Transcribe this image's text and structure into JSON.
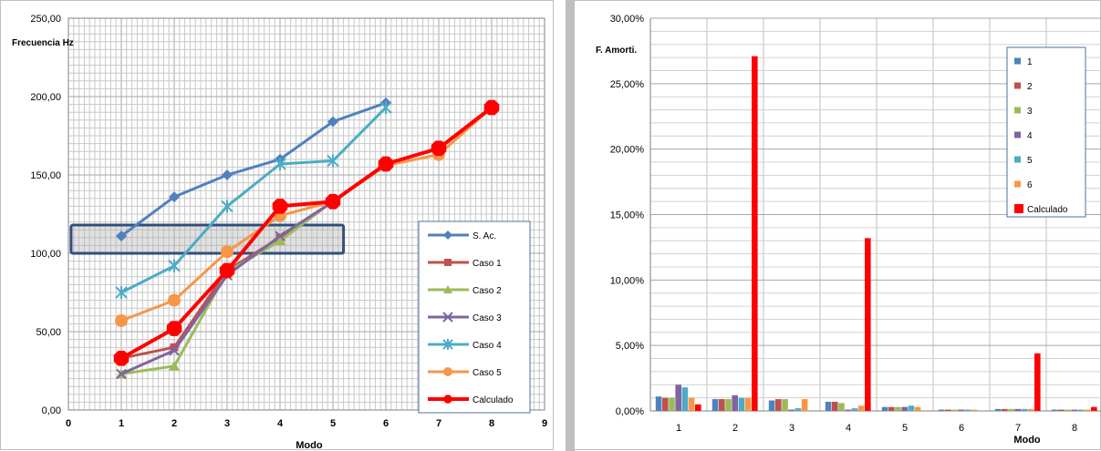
{
  "chart_data": [
    {
      "type": "line",
      "ylabel": "Frecuencia Hz",
      "xlabel": "Modo",
      "xlim": [
        0,
        9
      ],
      "ylim": [
        0,
        250
      ],
      "x_ticks": [
        "0",
        "1",
        "2",
        "3",
        "4",
        "5",
        "6",
        "7",
        "8",
        "9"
      ],
      "y_ticks": [
        "0,00",
        "50,00",
        "100,00",
        "150,00",
        "200,00",
        "250,00"
      ],
      "grid": true,
      "legend_position": "bottom-right",
      "highlight_box": {
        "x_range": [
          0.05,
          5.2
        ],
        "y_range": [
          100,
          118
        ]
      },
      "series": [
        {
          "name": "S. Ac.",
          "color": "#4f81bd",
          "marker": "diamond",
          "x": [
            1,
            2,
            3,
            4,
            5,
            6
          ],
          "values": [
            111,
            136,
            150,
            160,
            184,
            196
          ]
        },
        {
          "name": "Caso 1",
          "color": "#c0504d",
          "marker": "square",
          "x": [
            1,
            2,
            3,
            4,
            5
          ],
          "values": [
            33,
            40,
            89,
            110,
            133
          ]
        },
        {
          "name": "Caso 2",
          "color": "#9bbb59",
          "marker": "triangle",
          "x": [
            1,
            2,
            3,
            4,
            5
          ],
          "values": [
            23,
            28,
            88,
            108,
            133
          ]
        },
        {
          "name": "Caso 3",
          "color": "#8064a2",
          "marker": "x",
          "x": [
            1,
            2,
            3,
            4,
            5
          ],
          "values": [
            23,
            38,
            86,
            111,
            133
          ]
        },
        {
          "name": "Caso 4",
          "color": "#4bacc6",
          "marker": "star",
          "x": [
            1,
            2,
            3,
            4,
            5,
            6
          ],
          "values": [
            75,
            92,
            130,
            157,
            159,
            193
          ]
        },
        {
          "name": "Caso 5",
          "color": "#f79646",
          "marker": "circle",
          "x": [
            1,
            2,
            3,
            4,
            5,
            6,
            7,
            8
          ],
          "values": [
            57,
            70,
            101,
            124,
            133,
            156,
            163,
            193
          ]
        },
        {
          "name": "Calculado",
          "color": "#ff0000",
          "marker": "octagon",
          "x": [
            1,
            2,
            3,
            4,
            5,
            6,
            7,
            8
          ],
          "values": [
            33,
            52,
            89,
            130,
            133,
            157,
            167,
            193
          ]
        }
      ]
    },
    {
      "type": "bar",
      "ylabel": "F. Amorti.",
      "xlabel": "Modo",
      "ylim": [
        0,
        30
      ],
      "y_ticks": [
        "0,00%",
        "5,00%",
        "10,00%",
        "15,00%",
        "20,00%",
        "25,00%",
        "30,00%"
      ],
      "categories": [
        "1",
        "2",
        "3",
        "4",
        "5",
        "6",
        "7",
        "8"
      ],
      "grid": true,
      "legend_position": "top-right",
      "series": [
        {
          "name": "1",
          "color": "#4f81bd",
          "values": [
            1.1,
            0.9,
            0.8,
            0.7,
            0.3,
            0.1,
            0.15,
            0.1
          ]
        },
        {
          "name": "2",
          "color": "#c0504d",
          "values": [
            1.0,
            0.9,
            0.9,
            0.7,
            0.3,
            0.1,
            0.15,
            0.1
          ]
        },
        {
          "name": "3",
          "color": "#9bbb59",
          "values": [
            1.0,
            0.9,
            0.9,
            0.6,
            0.3,
            0.1,
            0.15,
            0.1
          ]
        },
        {
          "name": "4",
          "color": "#8064a2",
          "values": [
            2.0,
            1.2,
            0.1,
            0.1,
            0.3,
            0.1,
            0.15,
            0.1
          ]
        },
        {
          "name": "5",
          "color": "#4bacc6",
          "values": [
            1.8,
            1.0,
            0.2,
            0.2,
            0.4,
            0.1,
            0.15,
            0.1
          ]
        },
        {
          "name": "6",
          "color": "#f79646",
          "values": [
            1.0,
            1.0,
            0.9,
            0.4,
            0.3,
            0.1,
            0.15,
            0.1
          ]
        },
        {
          "name": "Calculado",
          "color": "#ff0000",
          "values": [
            0.5,
            27.1,
            0.0,
            13.2,
            0.0,
            0.0,
            4.4,
            0.3
          ]
        }
      ]
    }
  ]
}
